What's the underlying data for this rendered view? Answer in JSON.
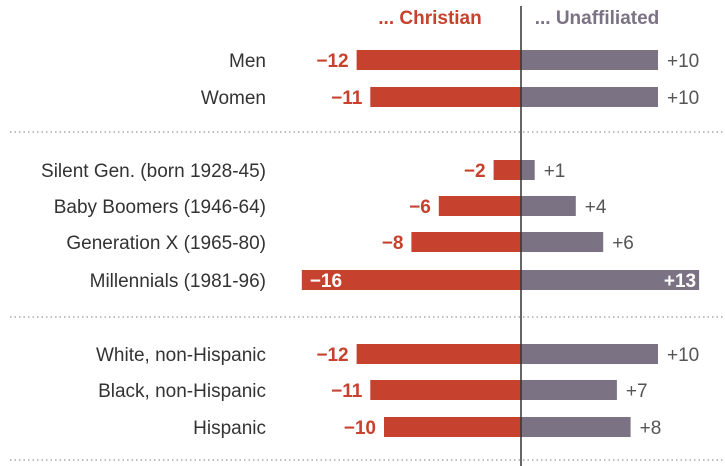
{
  "colors": {
    "christian": "#c6422e",
    "unaffiliated": "#7b7283",
    "axis": "#333333",
    "separator": "#999999"
  },
  "chart_data": {
    "type": "bar",
    "orientation": "horizontal-diverging",
    "column_headers": [
      "... Christian",
      "... Unaffiliated"
    ],
    "groups": [
      {
        "categories": [
          "Men",
          "Women"
        ]
      },
      {
        "categories": [
          "Silent Gen. (born 1928-45)",
          "Baby Boomers (1946-64)",
          "Generation X (1965-80)",
          "Millennials (1981-96)"
        ]
      },
      {
        "categories": [
          "White, non-Hispanic",
          "Black, non-Hispanic",
          "Hispanic"
        ]
      }
    ],
    "categories": [
      "Men",
      "Women",
      "Silent Gen. (born 1928-45)",
      "Baby Boomers (1946-64)",
      "Generation X (1965-80)",
      "Millennials (1981-96)",
      "White, non-Hispanic",
      "Black, non-Hispanic",
      "Hispanic"
    ],
    "series": [
      {
        "name": "... Christian",
        "values": [
          -12,
          -11,
          -2,
          -6,
          -8,
          -16,
          -12,
          -11,
          -10
        ],
        "labels": [
          "−12",
          "−11",
          "−2",
          "−6",
          "−8",
          "−16",
          "−12",
          "−11",
          "−10"
        ]
      },
      {
        "name": "... Unaffiliated",
        "values": [
          10,
          10,
          1,
          4,
          6,
          13,
          10,
          7,
          8
        ],
        "labels": [
          "+10",
          "+10",
          "+1",
          "+4",
          "+6",
          "+13",
          "+10",
          "+7",
          "+8"
        ]
      }
    ],
    "xlim": [
      -16,
      13
    ]
  }
}
